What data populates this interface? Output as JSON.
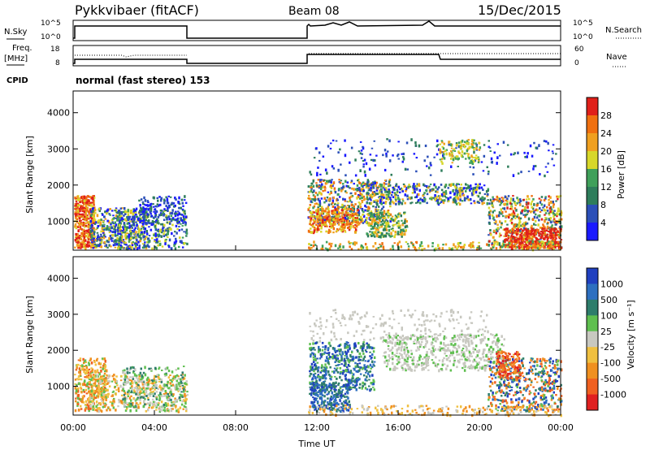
{
  "header": {
    "station": "Pykkvibaer (fitACF)",
    "beam": "Beam 08",
    "date": "15/Dec/2015"
  },
  "panels": {
    "nsky_label": "N.Sky",
    "nsky_ticks": [
      "10^5",
      "10^0"
    ],
    "nsearch_label": "N.Search",
    "nsearch_ticks": [
      "10^5",
      "10^0"
    ],
    "freq_label_1": "Freq.",
    "freq_label_2": "[MHz]",
    "freq_ticks": [
      "18",
      "8"
    ],
    "nave_label": "Nave",
    "nave_ticks": [
      "60",
      "0"
    ],
    "cpid_label": "CPID",
    "cpid_text": "normal (fast stereo) 153"
  },
  "chart_data": [
    {
      "type": "heatmap",
      "name": "power",
      "ylabel": "Slant Range [km]",
      "xlabel": "",
      "y_ticks": [
        "1000",
        "2000",
        "3000",
        "4000"
      ],
      "ylim": [
        200,
        4600
      ],
      "colorbar_label": "Power [dB]",
      "colorbar_ticks": [
        "4",
        "8",
        "12",
        "16",
        "20",
        "24",
        "28"
      ],
      "colorbar_colors": [
        "#1a1aff",
        "#2b4fb8",
        "#2e7d5b",
        "#3fa05a",
        "#d7d72a",
        "#f0a020",
        "#f07010",
        "#e0201a"
      ]
    },
    {
      "type": "heatmap",
      "name": "velocity",
      "ylabel": "Slant Range [km]",
      "xlabel": "Time UT",
      "x_ticks": [
        "00:00",
        "04:00",
        "08:00",
        "12:00",
        "16:00",
        "20:00",
        "00:00"
      ],
      "y_ticks": [
        "1000",
        "2000",
        "3000",
        "4000"
      ],
      "ylim": [
        200,
        4600
      ],
      "colorbar_label": "Velocity [m s⁻¹]",
      "colorbar_ticks": [
        "1000",
        "500",
        "100",
        "25",
        "-25",
        "-100",
        "-500",
        "-1000"
      ],
      "colorbar_colors": [
        "#2040c0",
        "#2d6fc0",
        "#2e7d6b",
        "#5fbf4f",
        "#c8c8c0",
        "#f0c040",
        "#f09020",
        "#f06020",
        "#e02020"
      ]
    }
  ]
}
